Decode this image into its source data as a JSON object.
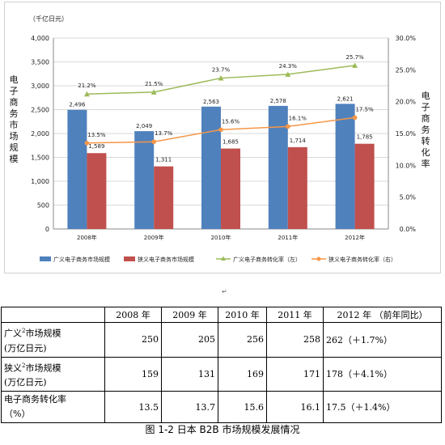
{
  "chart_data": {
    "type": "bar",
    "y_unit_label": "（千亿日元）",
    "left_axis_title": [
      "电",
      "子",
      "商",
      "务",
      "市",
      "场",
      "规",
      "模"
    ],
    "right_axis_title": [
      "电",
      "子",
      "商",
      "务",
      "转",
      "化",
      "率"
    ],
    "categories": [
      "2008年",
      "2009年",
      "2010年",
      "2011年",
      "2012年"
    ],
    "ylim": [
      0,
      4000
    ],
    "y2lim": [
      0,
      30
    ],
    "y_ticks": [
      "0",
      "500",
      "1,000",
      "1,500",
      "2,000",
      "2,500",
      "3,000",
      "3,500",
      "4,000"
    ],
    "y2_ticks": [
      "0.0%",
      "5.0%",
      "10.0%",
      "15.0%",
      "20.0%",
      "25.0%",
      "30.0%"
    ],
    "grid": true,
    "legend_position": "bottom",
    "series": [
      {
        "name": "广义电子商务市场规模",
        "kind": "bar",
        "axis": "left",
        "color": "#4F81BD",
        "values": [
          2496,
          2049,
          2563,
          2578,
          2621
        ],
        "labels": [
          "2,496",
          "2,049",
          "2,563",
          "2,578",
          "2,621"
        ]
      },
      {
        "name": "狭义电子商务市场规模",
        "kind": "bar",
        "axis": "left",
        "color": "#C0504D",
        "values": [
          1589,
          1311,
          1685,
          1714,
          1785
        ],
        "labels": [
          "1,589",
          "1,311",
          "1,685",
          "1,714",
          "1,785"
        ]
      },
      {
        "name": "广义电子商务转化率（左）",
        "kind": "line",
        "axis": "right",
        "color": "#9BBB59",
        "values": [
          21.2,
          21.5,
          23.7,
          24.3,
          25.7
        ],
        "labels": [
          "21.2%",
          "21.5%",
          "23.7%",
          "24.3%",
          "25.7%"
        ]
      },
      {
        "name": "狭义电子商务转化率（右）",
        "kind": "line",
        "axis": "right",
        "color": "#F79646",
        "values": [
          13.5,
          13.7,
          15.6,
          16.1,
          17.5
        ],
        "labels": [
          "13.5%",
          "13.7%",
          "15.6%",
          "16.1%",
          "17.5%"
        ]
      }
    ]
  },
  "table": {
    "headers": [
      "",
      "2008 年",
      "2009 年",
      "2010 年",
      "2011 年",
      "2012 年 （前年同比）"
    ],
    "rows": [
      {
        "label1": "广义",
        "sup": "2",
        "label2": "市场规模",
        "label3": "(万亿日元)",
        "values": [
          "250",
          "205",
          "256",
          "258",
          "262（＋1.7%）"
        ]
      },
      {
        "label1": "狭义",
        "sup": "2",
        "label2": "市场规模",
        "label3": "(万亿日元)",
        "values": [
          "159",
          "131",
          "169",
          "171",
          "178（＋4.1%）"
        ]
      },
      {
        "label1": "电子商务转化率",
        "sup": "",
        "label2": "",
        "label3": "（%）",
        "values": [
          "13.5",
          "13.7",
          "15.6",
          "16.1",
          "17.5（＋1.4%）"
        ]
      }
    ]
  },
  "caption": "图 1-2  日本 B2B 市场规模发展情况"
}
